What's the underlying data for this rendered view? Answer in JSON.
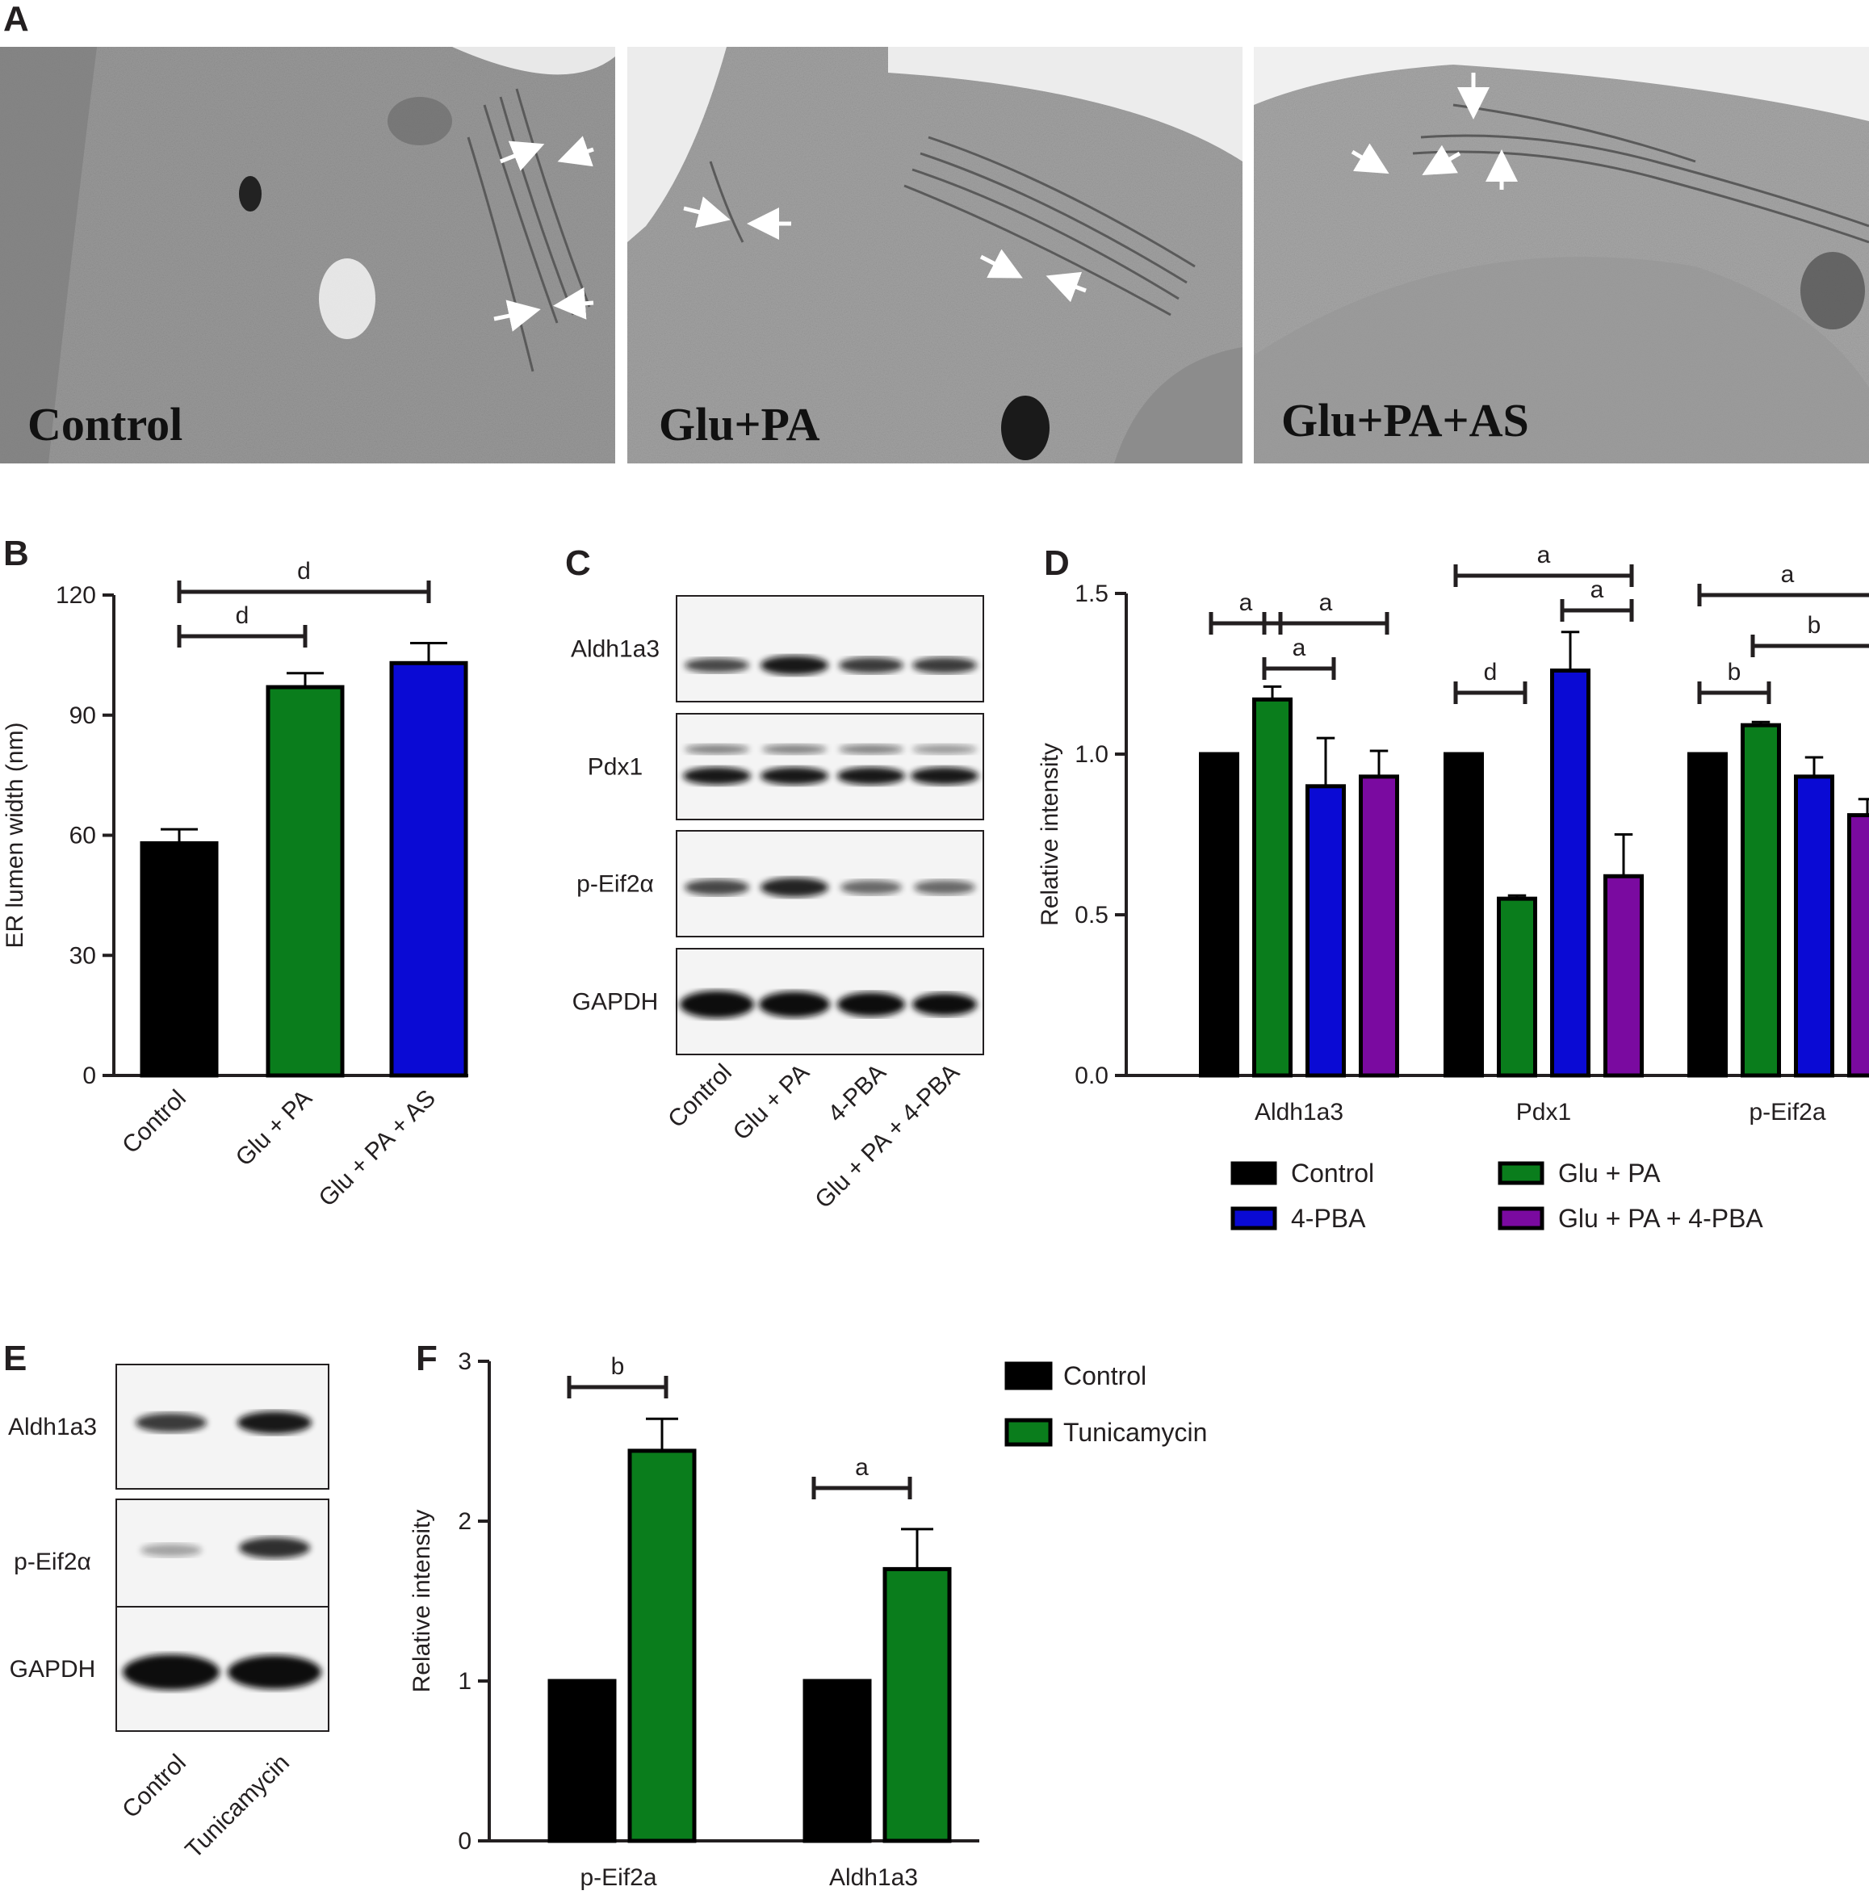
{
  "panel_letters": {
    "a": "A",
    "b": "B",
    "c": "C",
    "d": "D",
    "e": "E",
    "f": "F"
  },
  "panel_a": {
    "labels": [
      "Control",
      "Glu+PA",
      "Glu+PA+AS"
    ]
  },
  "panel_c": {
    "rows": [
      "Aldh1a3",
      "Pdx1",
      "p-Eif2α",
      "GAPDH"
    ],
    "lanes": [
      "Control",
      "Glu + PA",
      "4-PBA",
      "Glu + PA + 4-PBA"
    ]
  },
  "panel_e": {
    "rows": [
      "Aldh1a3",
      "p-Eif2α",
      "GAPDH"
    ],
    "lanes": [
      "Control",
      "Tunicamycin"
    ]
  },
  "colors": {
    "black": "#000000",
    "green": "#0a7d1c",
    "blue": "#0a0ad4",
    "purple": "#7a0aa0"
  },
  "chart_data": [
    {
      "panel": "B",
      "type": "bar",
      "categories": [
        "Control",
        "Glu + PA",
        "Glu + PA + AS"
      ],
      "values": [
        58,
        97,
        103
      ],
      "errors": [
        3.5,
        3.5,
        5
      ],
      "colors": [
        "#000000",
        "#0a7d1c",
        "#0a0ad4"
      ],
      "ylabel": "ER lumen width (nm)",
      "ylim": [
        0,
        120
      ],
      "yticks": [
        "0",
        "30",
        "60",
        "90",
        "120"
      ],
      "significance": [
        {
          "from": "Control",
          "to": "Glu + PA",
          "label": "d"
        },
        {
          "from": "Control",
          "to": "Glu + PA + AS",
          "label": "d"
        }
      ]
    },
    {
      "panel": "D",
      "type": "bar",
      "categories": [
        "Aldh1a3",
        "Pdx1",
        "p-Eif2a"
      ],
      "ylabel": "Relative intensity",
      "ylim": [
        0,
        1.5
      ],
      "yticks": [
        "0.0",
        "0.5",
        "1.0",
        "1.5"
      ],
      "series": [
        {
          "name": "Control",
          "color": "#000000",
          "values": [
            1.0,
            1.0,
            1.0
          ],
          "errors": [
            0,
            0,
            0
          ]
        },
        {
          "name": "Glu + PA",
          "color": "#0a7d1c",
          "values": [
            1.17,
            0.55,
            1.09
          ],
          "errors": [
            0.04,
            0.01,
            0.01
          ]
        },
        {
          "name": "4-PBA",
          "color": "#0a0ad4",
          "values": [
            0.9,
            1.26,
            0.93
          ],
          "errors": [
            0.15,
            0.12,
            0.06
          ]
        },
        {
          "name": "Glu + PA + 4-PBA",
          "color": "#7a0aa0",
          "values": [
            0.93,
            0.62,
            0.81
          ],
          "errors": [
            0.08,
            0.13,
            0.05
          ]
        }
      ],
      "significance": [
        {
          "category": "Aldh1a3",
          "from": "Control",
          "to": "Glu + PA",
          "label": "a"
        },
        {
          "category": "Aldh1a3",
          "from": "Glu + PA",
          "to": "Glu + PA + 4-PBA",
          "label": "a"
        },
        {
          "category": "Aldh1a3",
          "from": "Glu + PA",
          "to": "4-PBA",
          "label": "a"
        },
        {
          "category": "Pdx1",
          "from": "Control",
          "to": "Glu + PA + 4-PBA",
          "label": "a"
        },
        {
          "category": "Pdx1",
          "from": "4-PBA",
          "to": "Glu + PA + 4-PBA",
          "label": "a"
        },
        {
          "category": "Pdx1",
          "from": "Control",
          "to": "Glu + PA",
          "label": "d"
        },
        {
          "category": "p-Eif2a",
          "from": "Control",
          "to": "Glu + PA + 4-PBA",
          "label": "a"
        },
        {
          "category": "p-Eif2a",
          "from": "Glu + PA",
          "to": "Glu + PA + 4-PBA",
          "label": "b"
        },
        {
          "category": "p-Eif2a",
          "from": "Control",
          "to": "Glu + PA",
          "label": "b"
        }
      ],
      "legend": [
        "Control",
        "Glu + PA",
        "4-PBA",
        "Glu + PA + 4-PBA"
      ]
    },
    {
      "panel": "F",
      "type": "bar",
      "categories": [
        "p-Eif2a",
        "Aldh1a3"
      ],
      "ylabel": "Relative intensity",
      "ylim": [
        0,
        3
      ],
      "yticks": [
        "0",
        "1",
        "2",
        "3"
      ],
      "series": [
        {
          "name": "Control",
          "color": "#000000",
          "values": [
            1.0,
            1.0
          ],
          "errors": [
            0,
            0
          ]
        },
        {
          "name": "Tunicamycin",
          "color": "#0a7d1c",
          "values": [
            2.44,
            1.7
          ],
          "errors": [
            0.2,
            0.25
          ]
        }
      ],
      "significance": [
        {
          "category": "p-Eif2a",
          "label": "b"
        },
        {
          "category": "Aldh1a3",
          "label": "a"
        }
      ],
      "legend": [
        "Control",
        "Tunicamycin"
      ]
    }
  ]
}
